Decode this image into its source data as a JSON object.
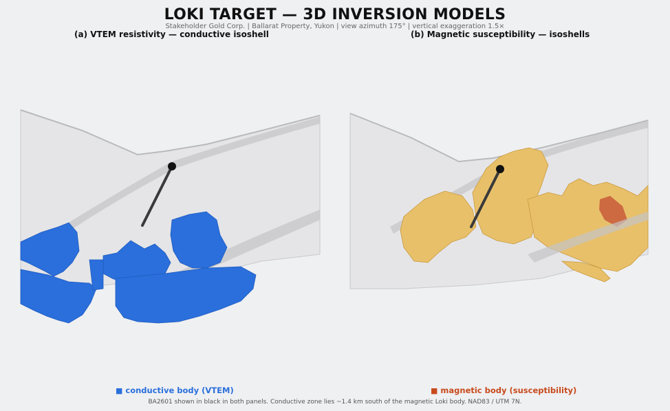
{
  "title": "LOKI TARGET — 3D INVERSION MODELS",
  "subtitle": "Stakeholder Gold Corp.  |  Ballarat Property, Yukon  |  view azimuth 175°  |  vertical exaggeration 1.5×",
  "panels": [
    {
      "label": "(a)  VTEM resistivity — conductive isoshell"
    },
    {
      "label": "(b)  Magnetic susceptibility — isoshells"
    }
  ],
  "legend": [
    {
      "marker": "■",
      "label": "conductive body (VTEM)",
      "color": "#2a6fdc"
    },
    {
      "marker": "■",
      "label": "magnetic body (susceptibility)",
      "color": "#c84a1c"
    }
  ],
  "footnote": "BA2601 shown in black in both panels.  Conductive zone lies ~1.4 km south of the magnetic Loki body.  NAD83 / UTM 7N.",
  "colors": {
    "conductive": "#2a6fdc",
    "magnetic_yellow": "#e8c06a",
    "magnetic_red": "#c85a3a",
    "drillhole": "#3a3a3a",
    "surface": "#d8d9db"
  }
}
